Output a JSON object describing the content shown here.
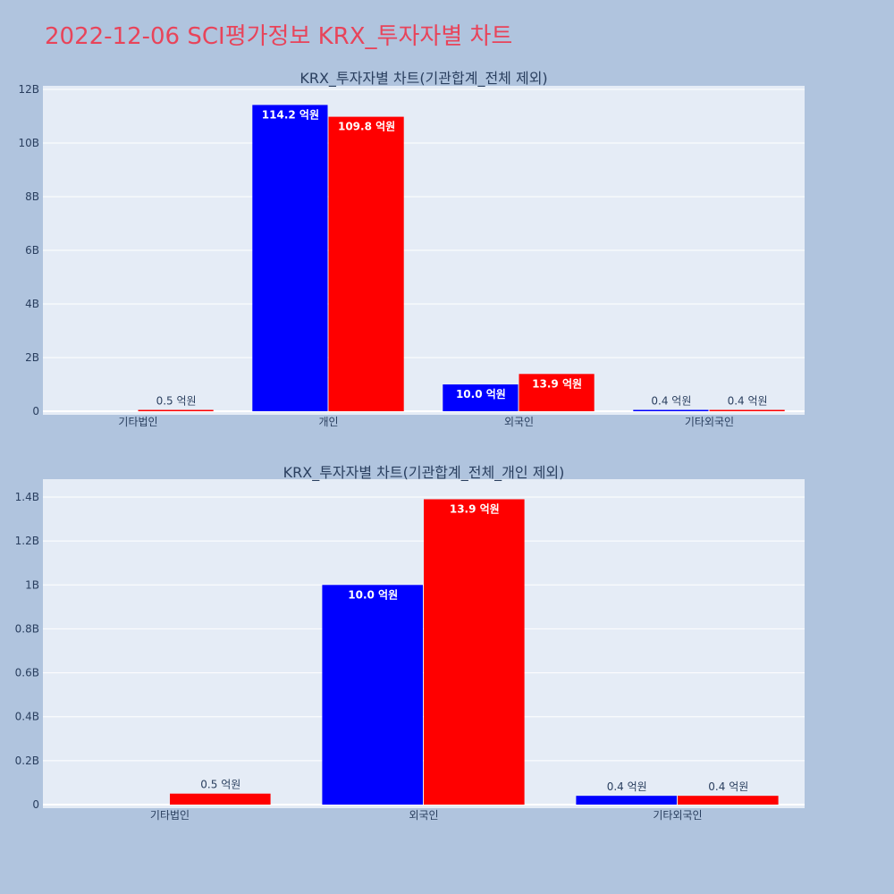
{
  "page": {
    "title": "2022-12-06 SCI평가정보 KRX_투자자별 차트"
  },
  "colors": {
    "background": "#b0c4de",
    "plot_background": "#e5ecf6",
    "title": "#e8445a",
    "text": "#2a3f5f",
    "series_blue": "#0000ff",
    "series_red": "#ff0000"
  },
  "chart_data": [
    {
      "type": "bar",
      "title": "KRX_투자자별 차트(기관합계_전체 제외)",
      "categories": [
        "기타법인",
        "개인",
        "외국인",
        "기타외국인"
      ],
      "series": [
        {
          "color": "#0000ff",
          "values": [
            0,
            11420000000,
            1000000000,
            40000000
          ],
          "labels": [
            "",
            "114.2 억원",
            "10.0 억원",
            "0.4 억원"
          ]
        },
        {
          "color": "#ff0000",
          "values": [
            50000000,
            10980000000,
            1390000000,
            40000000
          ],
          "labels": [
            "0.5 억원",
            "109.8 억원",
            "13.9 억원",
            "0.4 억원"
          ]
        }
      ],
      "ylim": [
        0,
        12000000000
      ],
      "yticks": [
        0,
        2000000000,
        4000000000,
        6000000000,
        8000000000,
        10000000000,
        12000000000
      ],
      "ytick_labels": [
        "0",
        "2B",
        "4B",
        "6B",
        "8B",
        "10B",
        "12B"
      ],
      "grid": true
    },
    {
      "type": "bar",
      "title": "KRX_투자자별 차트(기관합계_전체_개인 제외)",
      "categories": [
        "기타법인",
        "외국인",
        "기타외국인"
      ],
      "series": [
        {
          "color": "#0000ff",
          "values": [
            0,
            1000000000,
            40000000
          ],
          "labels": [
            "",
            "10.0 억원",
            "0.4 억원"
          ]
        },
        {
          "color": "#ff0000",
          "values": [
            50000000,
            1390000000,
            40000000
          ],
          "labels": [
            "0.5 억원",
            "13.9 억원",
            "0.4 억원"
          ]
        }
      ],
      "ylim": [
        0,
        1400000000
      ],
      "yticks": [
        0,
        200000000,
        400000000,
        600000000,
        800000000,
        1000000000,
        1200000000,
        1400000000
      ],
      "ytick_labels": [
        "0",
        "0.2B",
        "0.4B",
        "0.6B",
        "0.8B",
        "1B",
        "1.2B",
        "1.4B"
      ],
      "grid": true
    }
  ]
}
